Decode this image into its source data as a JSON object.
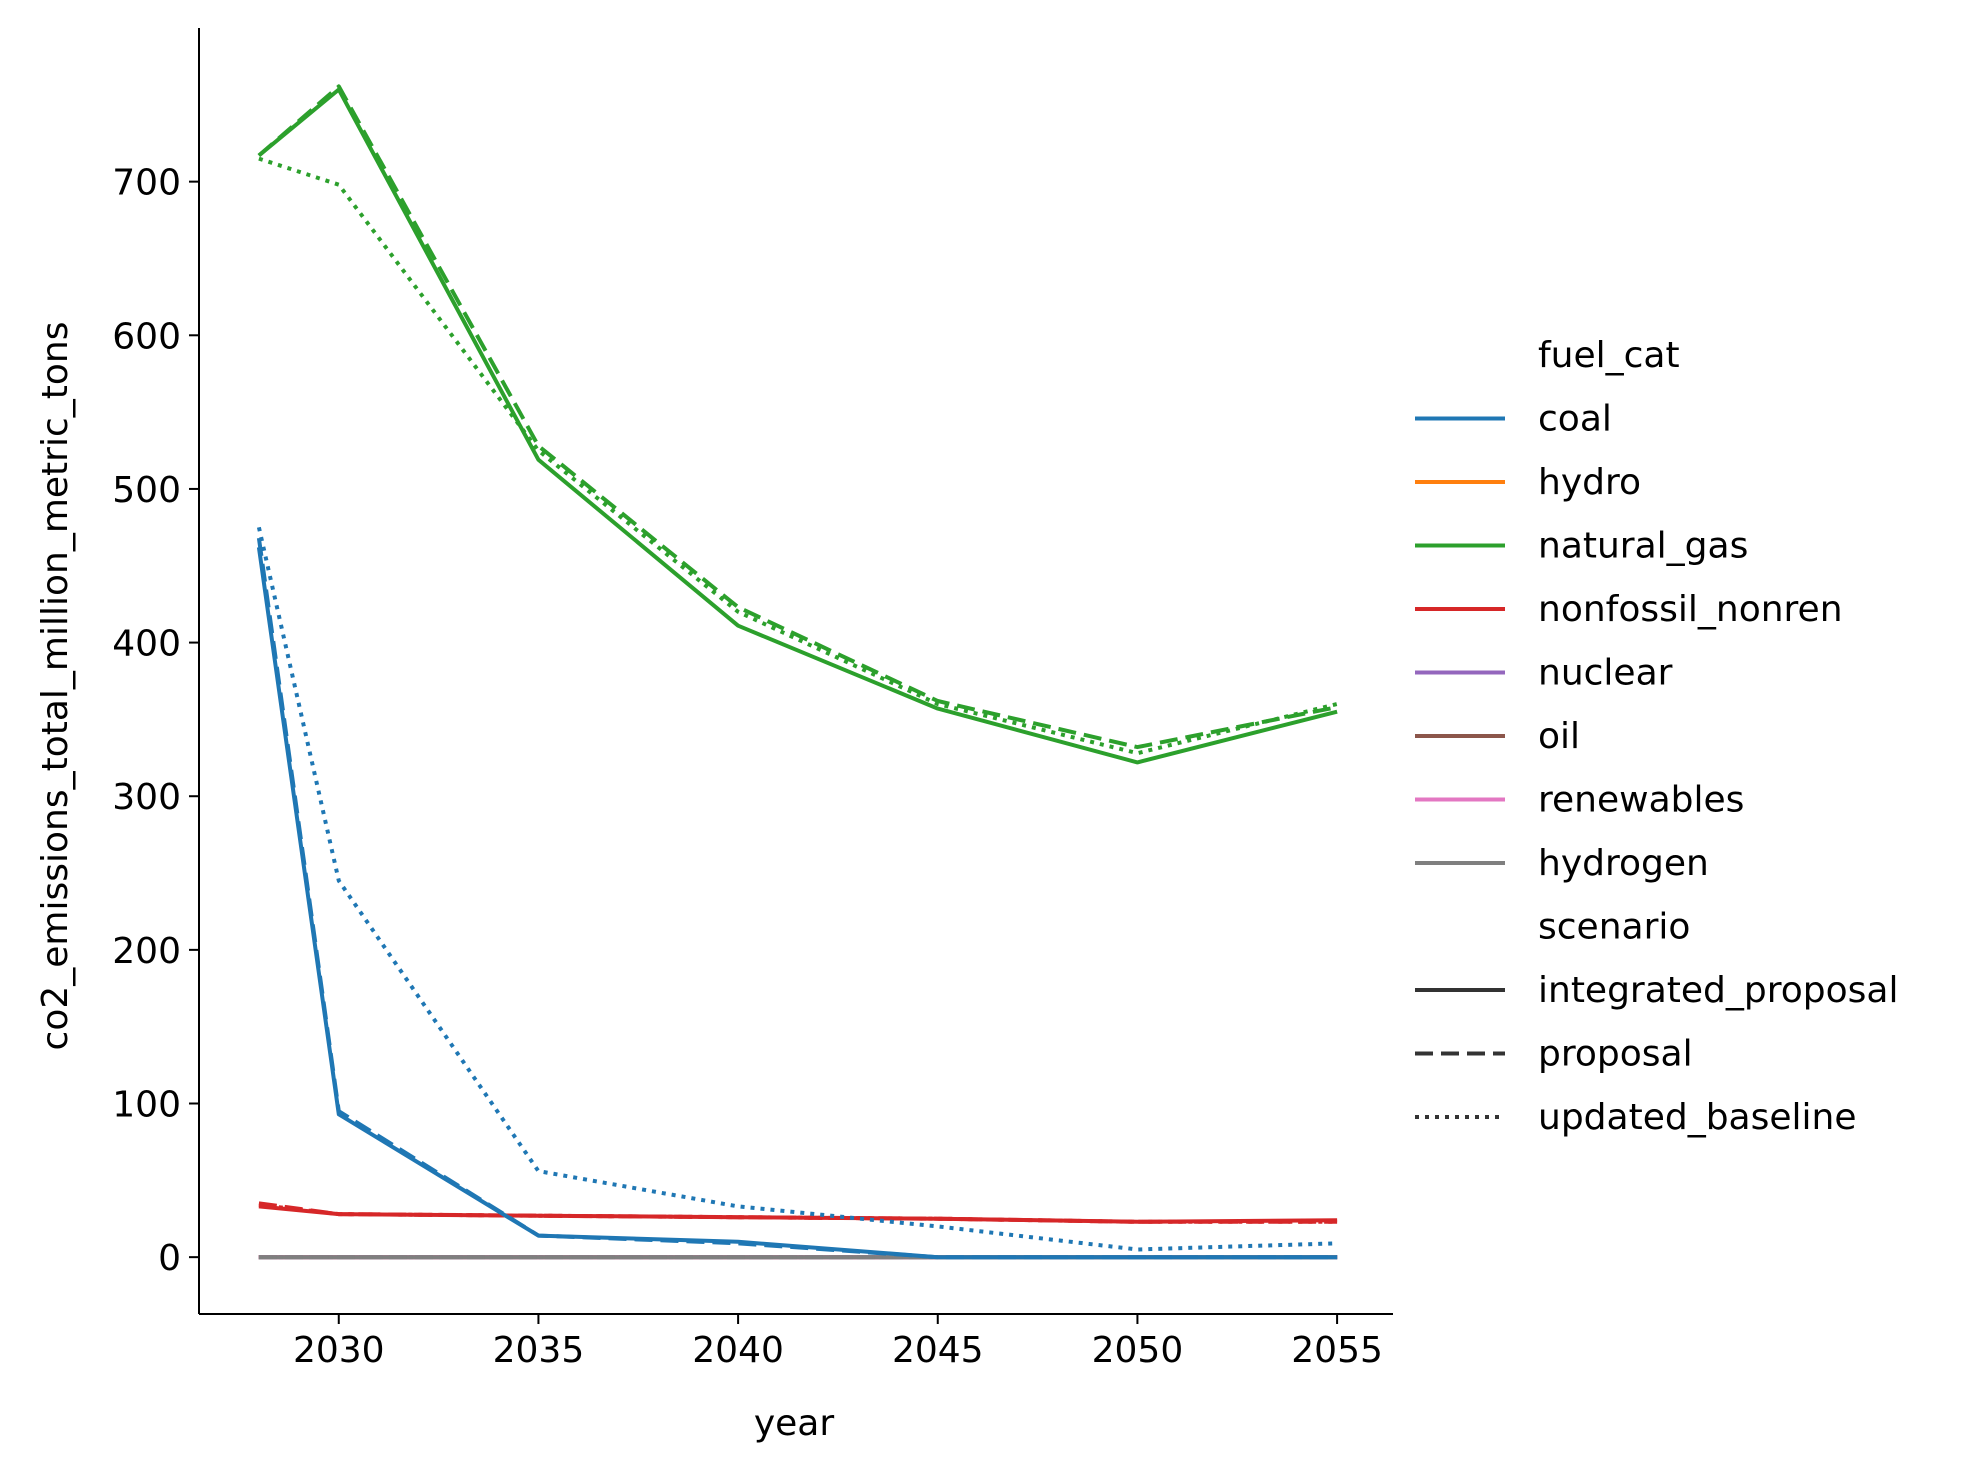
{
  "chart_data": {
    "type": "line",
    "xlabel": "year",
    "ylabel": "co2_emissions_total_million_metric_tons",
    "xlim": [
      2026.5,
      2056.4
    ],
    "ylim": [
      -37,
      800
    ],
    "x_ticks": [
      "2030",
      "2035",
      "2040",
      "2045",
      "2050",
      "2055"
    ],
    "y_ticks": [
      "0",
      "100",
      "200",
      "300",
      "400",
      "500",
      "600",
      "700"
    ],
    "x": [
      2028,
      2030,
      2035,
      2040,
      2045,
      2050,
      2055
    ],
    "legend": {
      "position": "right",
      "hue_title": "fuel_cat",
      "hue": [
        {
          "name": "coal",
          "color": "#1f77b4"
        },
        {
          "name": "hydro",
          "color": "#ff7f0e"
        },
        {
          "name": "natural_gas",
          "color": "#2ca02c"
        },
        {
          "name": "nonfossil_nonren",
          "color": "#d62728"
        },
        {
          "name": "nuclear",
          "color": "#9467bd"
        },
        {
          "name": "oil",
          "color": "#8c564b"
        },
        {
          "name": "renewables",
          "color": "#e377c2"
        },
        {
          "name": "hydrogen",
          "color": "#7f7f7f"
        }
      ],
      "style_title": "scenario",
      "style": [
        {
          "name": "integrated_proposal",
          "dash": "solid"
        },
        {
          "name": "proposal",
          "dash": "dashed"
        },
        {
          "name": "updated_baseline",
          "dash": "dotted"
        }
      ]
    },
    "series": [
      {
        "fuel": "hydro",
        "scenario": "integrated_proposal",
        "values": [
          0,
          0,
          0,
          0,
          0,
          0,
          0
        ]
      },
      {
        "fuel": "hydro",
        "scenario": "proposal",
        "values": [
          0,
          0,
          0,
          0,
          0,
          0,
          0
        ]
      },
      {
        "fuel": "hydro",
        "scenario": "updated_baseline",
        "values": [
          0,
          0,
          0,
          0,
          0,
          0,
          0
        ]
      },
      {
        "fuel": "nuclear",
        "scenario": "integrated_proposal",
        "values": [
          0,
          0,
          0,
          0,
          0,
          0,
          0
        ]
      },
      {
        "fuel": "nuclear",
        "scenario": "proposal",
        "values": [
          0,
          0,
          0,
          0,
          0,
          0,
          0
        ]
      },
      {
        "fuel": "nuclear",
        "scenario": "updated_baseline",
        "values": [
          0,
          0,
          0,
          0,
          0,
          0,
          0
        ]
      },
      {
        "fuel": "oil",
        "scenario": "integrated_proposal",
        "values": [
          0,
          0,
          0,
          0,
          0,
          0,
          0
        ]
      },
      {
        "fuel": "oil",
        "scenario": "proposal",
        "values": [
          0,
          0,
          0,
          0,
          0,
          0,
          0
        ]
      },
      {
        "fuel": "oil",
        "scenario": "updated_baseline",
        "values": [
          0,
          0,
          0,
          0,
          0,
          0,
          0
        ]
      },
      {
        "fuel": "renewables",
        "scenario": "integrated_proposal",
        "values": [
          0,
          0,
          0,
          0,
          0,
          0,
          0
        ]
      },
      {
        "fuel": "renewables",
        "scenario": "proposal",
        "values": [
          0,
          0,
          0,
          0,
          0,
          0,
          0
        ]
      },
      {
        "fuel": "renewables",
        "scenario": "updated_baseline",
        "values": [
          0,
          0,
          0,
          0,
          0,
          0,
          0
        ]
      },
      {
        "fuel": "hydrogen",
        "scenario": "integrated_proposal",
        "values": [
          0,
          0,
          0,
          0,
          0,
          0,
          0
        ]
      },
      {
        "fuel": "hydrogen",
        "scenario": "proposal",
        "values": [
          0,
          0,
          0,
          0,
          0,
          0,
          0
        ]
      },
      {
        "fuel": "hydrogen",
        "scenario": "updated_baseline",
        "values": [
          0,
          0,
          0,
          0,
          0,
          0,
          0
        ]
      },
      {
        "fuel": "nonfossil_nonren",
        "scenario": "updated_baseline",
        "values": [
          34,
          28,
          27,
          26,
          25,
          23,
          23
        ]
      },
      {
        "fuel": "nonfossil_nonren",
        "scenario": "proposal",
        "values": [
          35,
          28,
          27,
          26,
          25,
          23,
          23
        ]
      },
      {
        "fuel": "nonfossil_nonren",
        "scenario": "integrated_proposal",
        "values": [
          33,
          28,
          27,
          26,
          25,
          23,
          24
        ]
      },
      {
        "fuel": "coal",
        "scenario": "updated_baseline",
        "values": [
          475,
          245,
          56,
          33,
          20,
          5,
          9
        ]
      },
      {
        "fuel": "coal",
        "scenario": "proposal",
        "values": [
          468,
          95,
          14,
          9,
          0,
          0,
          0
        ]
      },
      {
        "fuel": "coal",
        "scenario": "integrated_proposal",
        "values": [
          462,
          93,
          14,
          10,
          0,
          0,
          0
        ]
      },
      {
        "fuel": "natural_gas",
        "scenario": "updated_baseline",
        "values": [
          715,
          698,
          525,
          420,
          360,
          328,
          360
        ]
      },
      {
        "fuel": "natural_gas",
        "scenario": "proposal",
        "values": [
          717,
          762,
          528,
          423,
          362,
          332,
          358
        ]
      },
      {
        "fuel": "natural_gas",
        "scenario": "integrated_proposal",
        "values": [
          717,
          760,
          519,
          411,
          357,
          322,
          355
        ]
      }
    ]
  }
}
